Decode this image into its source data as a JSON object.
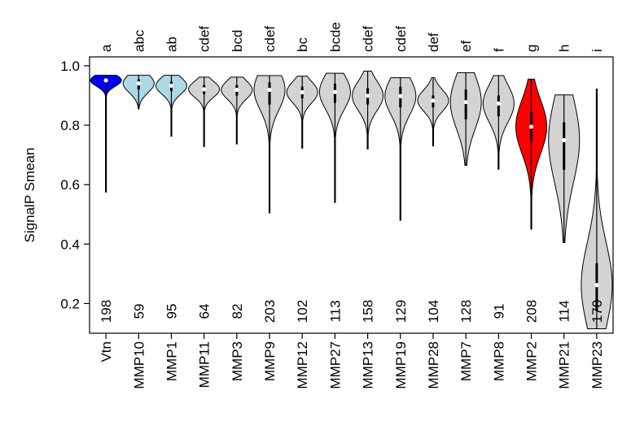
{
  "chart_data": {
    "type": "violin",
    "title": "",
    "xlabel": "",
    "ylabel": "SignalP Smean",
    "ylim": [
      0.1,
      1.03
    ],
    "yticks": [
      "0.2",
      "0.4",
      "0.6",
      "0.8",
      "1.0"
    ],
    "grid": false,
    "legend": "none",
    "colors": {
      "Vtn": "#0000ff",
      "MMP10": "#add8e6",
      "MMP1": "#add8e6",
      "MMP2": "#ff0000",
      "default": "#d3d3d3"
    },
    "categories": [
      "Vtn",
      "MMP10",
      "MMP1",
      "MMP11",
      "MMP3",
      "MMP9",
      "MMP12",
      "MMP27",
      "MMP13",
      "MMP19",
      "MMP28",
      "MMP7",
      "MMP8",
      "MMP2",
      "MMP21",
      "MMP23"
    ],
    "group_letters": [
      "a",
      "abc",
      "ab",
      "cdef",
      "bcd",
      "cdef",
      "bc",
      "bcde",
      "cdef",
      "cdef",
      "def",
      "ef",
      "f",
      "g",
      "h",
      "i"
    ],
    "counts": [
      "198",
      "59",
      "95",
      "64",
      "82",
      "203",
      "102",
      "113",
      "158",
      "129",
      "104",
      "128",
      "91",
      "208",
      "114",
      "170"
    ],
    "series": [
      {
        "category": "Vtn",
        "min": 0.575,
        "max": 0.968,
        "median": 0.951,
        "q1": 0.94,
        "q3": 0.958
      },
      {
        "category": "MMP10",
        "min": 0.855,
        "max": 0.968,
        "median": 0.941,
        "q1": 0.92,
        "q3": 0.955
      },
      {
        "category": "MMP1",
        "min": 0.763,
        "max": 0.968,
        "median": 0.933,
        "q1": 0.915,
        "q3": 0.947
      },
      {
        "category": "MMP11",
        "min": 0.728,
        "max": 0.962,
        "median": 0.921,
        "q1": 0.905,
        "q3": 0.935
      },
      {
        "category": "MMP3",
        "min": 0.737,
        "max": 0.962,
        "median": 0.919,
        "q1": 0.9,
        "q3": 0.935
      },
      {
        "category": "MMP9",
        "min": 0.505,
        "max": 0.967,
        "median": 0.919,
        "q1": 0.87,
        "q3": 0.945
      },
      {
        "category": "MMP12",
        "min": 0.723,
        "max": 0.965,
        "median": 0.911,
        "q1": 0.89,
        "q3": 0.93
      },
      {
        "category": "MMP27",
        "min": 0.54,
        "max": 0.975,
        "median": 0.912,
        "q1": 0.875,
        "q3": 0.94
      },
      {
        "category": "MMP13",
        "min": 0.72,
        "max": 0.982,
        "median": 0.899,
        "q1": 0.87,
        "q3": 0.925
      },
      {
        "category": "MMP19",
        "min": 0.48,
        "max": 0.96,
        "median": 0.898,
        "q1": 0.86,
        "q3": 0.93
      },
      {
        "category": "MMP28",
        "min": 0.73,
        "max": 0.96,
        "median": 0.883,
        "q1": 0.86,
        "q3": 0.9
      },
      {
        "category": "MMP7",
        "min": 0.665,
        "max": 0.977,
        "median": 0.878,
        "q1": 0.82,
        "q3": 0.92
      },
      {
        "category": "MMP8",
        "min": 0.652,
        "max": 0.967,
        "median": 0.873,
        "q1": 0.83,
        "q3": 0.9
      },
      {
        "category": "MMP2",
        "min": 0.45,
        "max": 0.955,
        "median": 0.795,
        "q1": 0.745,
        "q3": 0.845
      },
      {
        "category": "MMP21",
        "min": 0.405,
        "max": 0.902,
        "median": 0.75,
        "q1": 0.65,
        "q3": 0.81
      },
      {
        "category": "MMP23",
        "min": 0.115,
        "max": 0.922,
        "median": 0.262,
        "q1": 0.175,
        "q3": 0.335
      }
    ]
  }
}
